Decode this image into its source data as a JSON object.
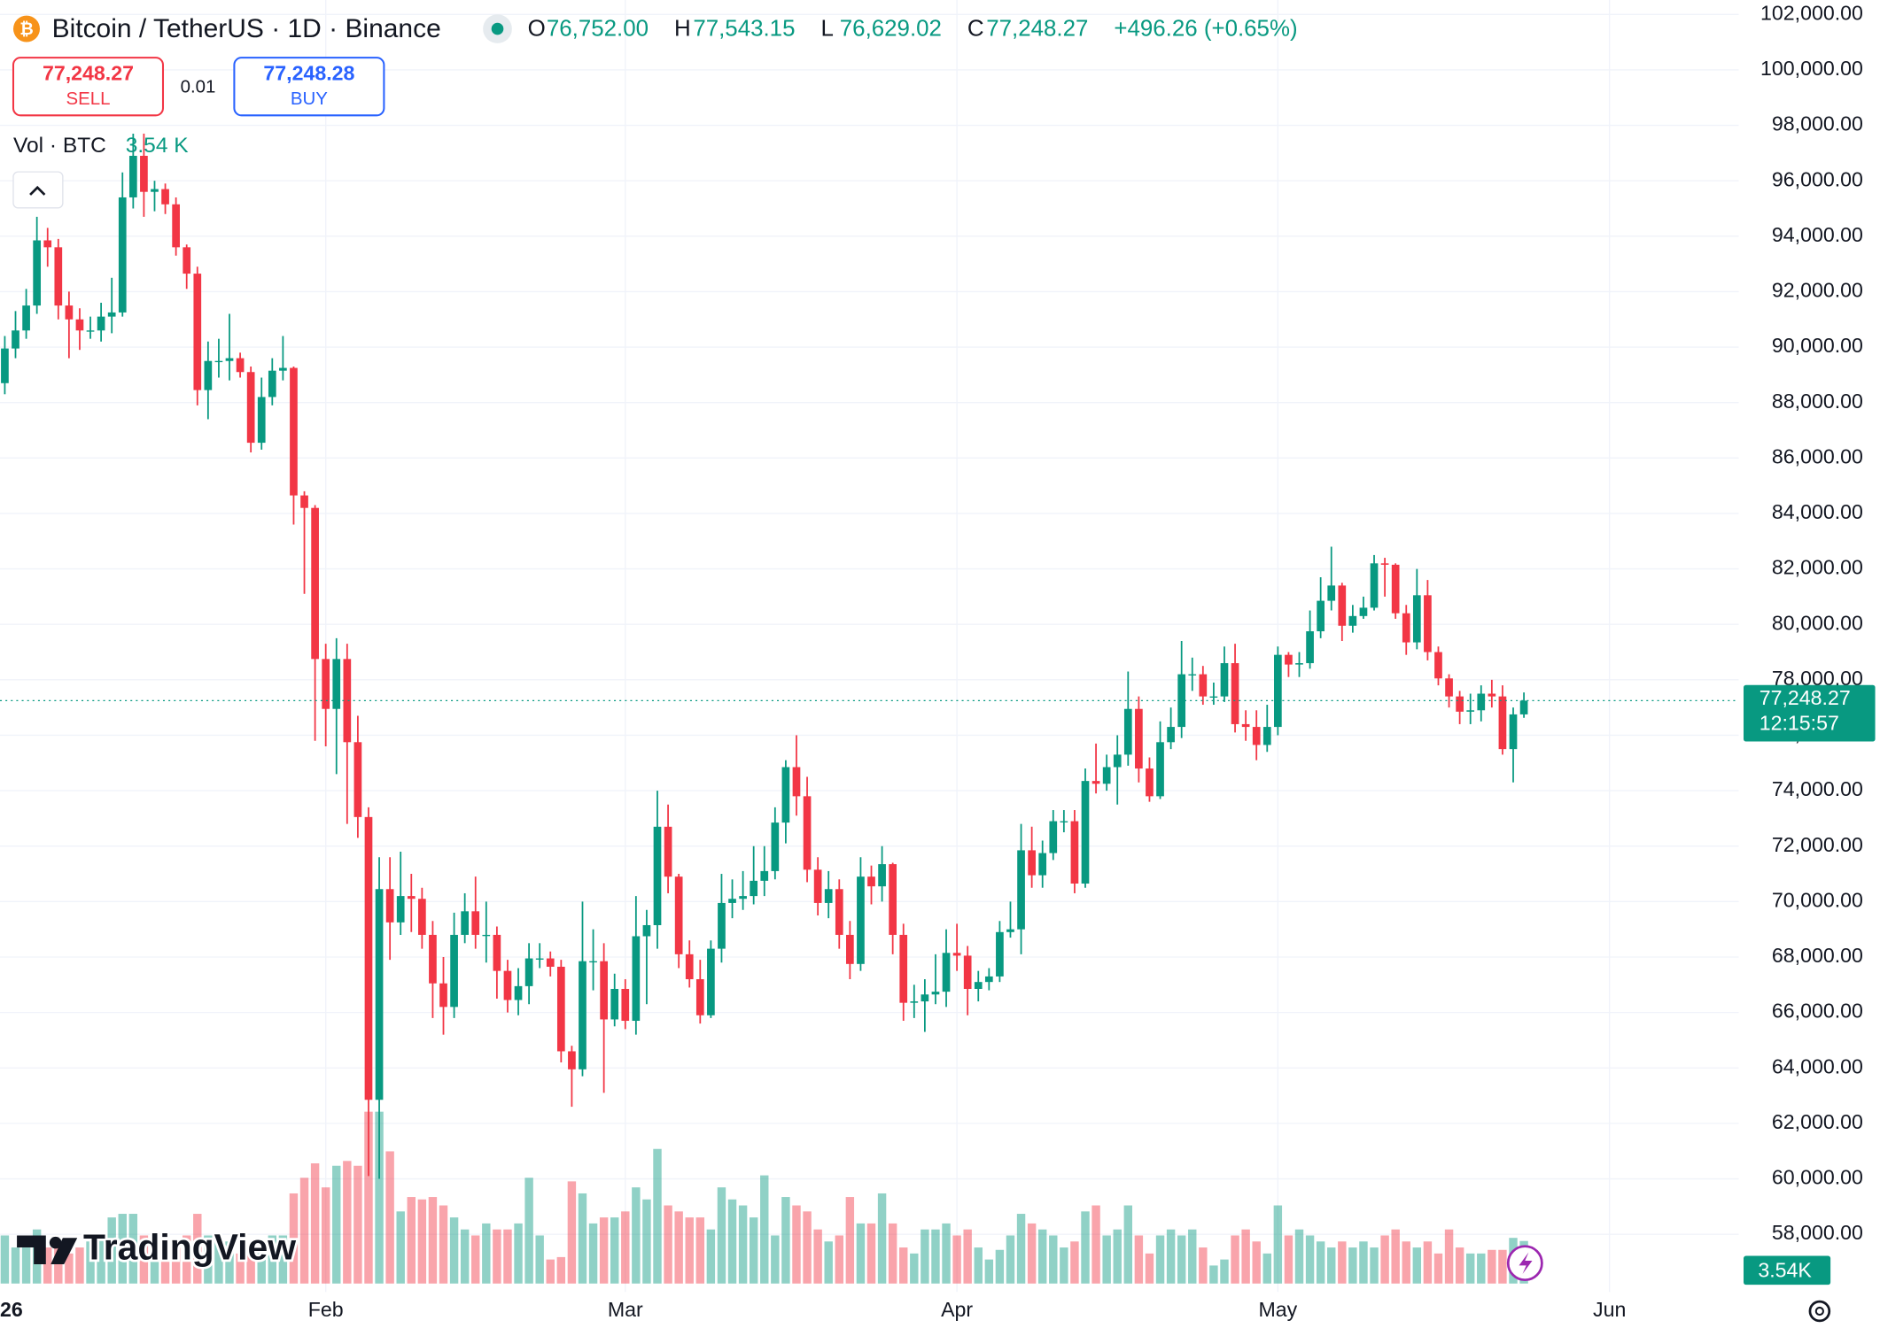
{
  "chart_data": {
    "type": "candlestick",
    "title": "Bitcoin / TetherUS · 1D · Binance",
    "ohlc_labels": [
      {
        "name": "O",
        "value": "76,752.00"
      },
      {
        "name": "H",
        "value": "77,543.15"
      },
      {
        "name": "L",
        "value": "76,629.02"
      },
      {
        "name": "C",
        "value": "77,248.27"
      }
    ],
    "change": "+496.26 (+0.65%)",
    "sell": {
      "price": "77,248.27",
      "label": "SELL"
    },
    "quantity": "0.01",
    "buy": {
      "price": "77,248.28",
      "label": "BUY"
    },
    "volume_title": "Vol · BTC",
    "volume_value": "3.54 K",
    "volume_axis_label": "3.54K",
    "last_price_label": "77,248.27",
    "countdown": "12:15:57",
    "logo": "TradingView",
    "up_color": "#089981",
    "down_color": "#f23645",
    "candles": [
      [
        88700,
        90400,
        88300,
        89950
      ],
      [
        89950,
        91300,
        89600,
        90600
      ],
      [
        90600,
        92100,
        90300,
        91500
      ],
      [
        91500,
        94700,
        91200,
        93850
      ],
      [
        93850,
        94300,
        92900,
        93600
      ],
      [
        93600,
        93900,
        91000,
        91500
      ],
      [
        91500,
        92000,
        89600,
        91000
      ],
      [
        91000,
        91400,
        89900,
        90600
      ],
      [
        90600,
        91100,
        90300,
        90600
      ],
      [
        90600,
        91600,
        90200,
        91100
      ],
      [
        91100,
        92500,
        90500,
        91250
      ],
      [
        91250,
        96300,
        91100,
        95400
      ],
      [
        95400,
        97700,
        95000,
        96900
      ],
      [
        96900,
        97700,
        94700,
        95600
      ],
      [
        95600,
        96000,
        94900,
        95700
      ],
      [
        95700,
        95900,
        94800,
        95150
      ],
      [
        95150,
        95400,
        93300,
        93600
      ],
      [
        93600,
        93700,
        92100,
        92650
      ],
      [
        92650,
        92900,
        87900,
        88450
      ],
      [
        88450,
        90200,
        87400,
        89500
      ],
      [
        89500,
        90300,
        88900,
        89500
      ],
      [
        89500,
        91200,
        88800,
        89600
      ],
      [
        89600,
        89800,
        88900,
        89100
      ],
      [
        89100,
        89300,
        86200,
        86550
      ],
      [
        86550,
        88900,
        86300,
        88200
      ],
      [
        88200,
        89600,
        87900,
        89150
      ],
      [
        89150,
        90400,
        88800,
        89250
      ],
      [
        89250,
        89300,
        83600,
        84650
      ],
      [
        84650,
        84800,
        81100,
        84200
      ],
      [
        84200,
        84300,
        75800,
        78750
      ],
      [
        78750,
        79300,
        75600,
        76950
      ],
      [
        76950,
        79500,
        74600,
        78750
      ],
      [
        78750,
        79300,
        72800,
        75750
      ],
      [
        75750,
        76700,
        72300,
        73050
      ],
      [
        73050,
        73400,
        60100,
        62850
      ],
      [
        62850,
        71600,
        60000,
        70450
      ],
      [
        70450,
        71600,
        67900,
        69250
      ],
      [
        69250,
        71800,
        68800,
        70200
      ],
      [
        70200,
        71000,
        68900,
        70100
      ],
      [
        70100,
        70500,
        68300,
        68800
      ],
      [
        68800,
        69300,
        65800,
        67050
      ],
      [
        67050,
        68000,
        65200,
        66200
      ],
      [
        66200,
        69600,
        65800,
        68800
      ],
      [
        68800,
        70300,
        68500,
        69650
      ],
      [
        69650,
        70900,
        68300,
        68800
      ],
      [
        68800,
        70000,
        67800,
        68800
      ],
      [
        68800,
        69100,
        66500,
        67500
      ],
      [
        67500,
        67900,
        66000,
        66450
      ],
      [
        66450,
        67600,
        65900,
        66950
      ],
      [
        66950,
        68500,
        66300,
        67950
      ],
      [
        67950,
        68500,
        67600,
        67950
      ],
      [
        67950,
        68200,
        67300,
        67650
      ],
      [
        67650,
        67900,
        64200,
        64600
      ],
      [
        64600,
        64800,
        62600,
        63950
      ],
      [
        63950,
        70000,
        63700,
        67850
      ],
      [
        67850,
        69000,
        66800,
        67850
      ],
      [
        67850,
        68500,
        63100,
        65750
      ],
      [
        65750,
        67400,
        65500,
        66850
      ],
      [
        66850,
        67200,
        65400,
        65700
      ],
      [
        65700,
        70200,
        65200,
        68750
      ],
      [
        68750,
        69700,
        66300,
        69150
      ],
      [
        69150,
        74000,
        68300,
        72700
      ],
      [
        72700,
        73500,
        70300,
        70900
      ],
      [
        70900,
        71000,
        67600,
        68100
      ],
      [
        68100,
        68600,
        66900,
        67200
      ],
      [
        67200,
        67900,
        65600,
        65900
      ],
      [
        65900,
        68600,
        65800,
        68300
      ],
      [
        68300,
        71000,
        67800,
        69950
      ],
      [
        69950,
        70800,
        69400,
        70100
      ],
      [
        70100,
        71100,
        69700,
        70200
      ],
      [
        70200,
        72000,
        69900,
        70750
      ],
      [
        70750,
        72000,
        70200,
        71100
      ],
      [
        71100,
        73400,
        70800,
        72850
      ],
      [
        72850,
        75100,
        72100,
        74850
      ],
      [
        74850,
        76000,
        73100,
        73800
      ],
      [
        73800,
        74500,
        70700,
        71150
      ],
      [
        71150,
        71600,
        69500,
        69950
      ],
      [
        69950,
        71100,
        69400,
        70450
      ],
      [
        70450,
        70800,
        68300,
        68800
      ],
      [
        68800,
        69300,
        67200,
        67750
      ],
      [
        67750,
        71600,
        67500,
        70900
      ],
      [
        70900,
        71300,
        69900,
        70550
      ],
      [
        70550,
        72000,
        70000,
        71350
      ],
      [
        71350,
        71400,
        68100,
        68800
      ],
      [
        68800,
        69200,
        65700,
        66350
      ],
      [
        66350,
        67000,
        65800,
        66400
      ],
      [
        66400,
        67200,
        65300,
        66650
      ],
      [
        66650,
        68100,
        66300,
        66750
      ],
      [
        66750,
        69000,
        66200,
        68150
      ],
      [
        68150,
        69200,
        67500,
        68050
      ],
      [
        68050,
        68400,
        65900,
        66850
      ],
      [
        66850,
        67500,
        66400,
        67100
      ],
      [
        67100,
        67600,
        66800,
        67300
      ],
      [
        67300,
        69300,
        67100,
        68900
      ],
      [
        68900,
        70000,
        68700,
        69000
      ],
      [
        69000,
        72800,
        68100,
        71850
      ],
      [
        71850,
        72700,
        70500,
        70950
      ],
      [
        70950,
        72200,
        70500,
        71750
      ],
      [
        71750,
        73300,
        71500,
        72900
      ],
      [
        72900,
        73300,
        72500,
        72900
      ],
      [
        72900,
        73300,
        70300,
        70650
      ],
      [
        70650,
        74800,
        70500,
        74350
      ],
      [
        74350,
        75700,
        73900,
        74250
      ],
      [
        74250,
        75300,
        74000,
        74850
      ],
      [
        74850,
        76000,
        73500,
        75300
      ],
      [
        75300,
        78300,
        74900,
        76950
      ],
      [
        76950,
        77400,
        74300,
        74800
      ],
      [
        74800,
        75200,
        73600,
        73800
      ],
      [
        73800,
        76500,
        73700,
        75750
      ],
      [
        75750,
        77000,
        75500,
        76300
      ],
      [
        76300,
        79400,
        75900,
        78200
      ],
      [
        78200,
        78800,
        77600,
        78200
      ],
      [
        78200,
        78500,
        77100,
        77400
      ],
      [
        77400,
        77900,
        77100,
        77400
      ],
      [
        77400,
        79200,
        77200,
        78600
      ],
      [
        78600,
        79300,
        76100,
        76400
      ],
      [
        76400,
        76900,
        75800,
        76300
      ],
      [
        76300,
        76900,
        75100,
        75650
      ],
      [
        75650,
        77100,
        75400,
        76300
      ],
      [
        76300,
        79200,
        76000,
        78900
      ],
      [
        78900,
        79000,
        78100,
        78550
      ],
      [
        78550,
        79000,
        78100,
        78600
      ],
      [
        78600,
        80500,
        78400,
        79750
      ],
      [
        79750,
        81700,
        79500,
        80850
      ],
      [
        80850,
        82800,
        80500,
        81400
      ],
      [
        81400,
        81500,
        79400,
        79950
      ],
      [
        79950,
        80700,
        79700,
        80300
      ],
      [
        80300,
        81000,
        80200,
        80600
      ],
      [
        80600,
        82500,
        80500,
        82200
      ],
      [
        82200,
        82400,
        81000,
        82150
      ],
      [
        82150,
        82200,
        80200,
        80400
      ],
      [
        80400,
        80700,
        78900,
        79350
      ],
      [
        79350,
        82000,
        79100,
        81050
      ],
      [
        81050,
        81600,
        78700,
        79000
      ],
      [
        79000,
        79200,
        77800,
        78050
      ],
      [
        78050,
        78200,
        77000,
        77400
      ],
      [
        77400,
        77600,
        76400,
        76850
      ],
      [
        76850,
        77500,
        76400,
        76900
      ],
      [
        76900,
        77800,
        76500,
        77500
      ],
      [
        77500,
        78000,
        77000,
        77400
      ],
      [
        77400,
        77800,
        75300,
        75500
      ],
      [
        75500,
        77000,
        74300,
        76752
      ],
      [
        76752,
        77543.15,
        76629.02,
        77248.27
      ]
    ],
    "volumes": [
      4000,
      3000,
      3000,
      4500,
      3000,
      3000,
      2500,
      3000,
      3500,
      4000,
      5500,
      5800,
      5800,
      4000,
      3500,
      2500,
      3000,
      4000,
      5800,
      4000,
      3500,
      3500,
      2500,
      3000,
      3500,
      4000,
      4000,
      7500,
      8800,
      10000,
      8000,
      9800,
      10200,
      9800,
      14300,
      14300,
      11000,
      6000,
      7200,
      7000,
      7200,
      6500,
      5500,
      4500,
      4000,
      5000,
      4500,
      4500,
      5000,
      8800,
      4000,
      2000,
      2200,
      8500,
      7500,
      5000,
      5500,
      5500,
      6000,
      8000,
      7000,
      11200,
      6500,
      6000,
      5500,
      5500,
      4500,
      8000,
      7000,
      6500,
      5500,
      9000,
      4000,
      7200,
      6500,
      6000,
      4500,
      3500,
      4000,
      7200,
      5000,
      5000,
      7500,
      5000,
      3000,
      2500,
      4500,
      4500,
      5000,
      4000,
      4500,
      3000,
      2000,
      2800,
      4000,
      5800,
      5000,
      4500,
      4000,
      3000,
      3500,
      6000,
      6500,
      4000,
      4500,
      6500,
      4000,
      2500,
      4000,
      4500,
      4000,
      4500,
      3000,
      1500,
      2000,
      4000,
      4500,
      3500,
      2500,
      6500,
      4000,
      4500,
      4000,
      3500,
      3000,
      3500,
      3000,
      3500,
      3000,
      4000,
      4500,
      3500,
      3000,
      3500,
      2500,
      4500,
      3000,
      2500,
      2500,
      2800,
      2800,
      3800,
      3540
    ],
    "xlim": [
      -0.45,
      162.08
    ],
    "xticks": [
      {
        "value": -1,
        "label": "26"
      },
      {
        "value": 30,
        "label": "Feb"
      },
      {
        "value": 58,
        "label": "Mar"
      },
      {
        "value": 89,
        "label": "Apr"
      },
      {
        "value": 119,
        "label": "May"
      },
      {
        "value": 150,
        "label": "Jun"
      }
    ],
    "ylim": [
      55920,
      102520
    ],
    "yticks": [
      {
        "value": 58000,
        "label": "58,000.00"
      },
      {
        "value": 60000,
        "label": "60,000.00"
      },
      {
        "value": 62000,
        "label": "62,000.00"
      },
      {
        "value": 64000,
        "label": "64,000.00"
      },
      {
        "value": 66000,
        "label": "66,000.00"
      },
      {
        "value": 68000,
        "label": "68,000.00"
      },
      {
        "value": 70000,
        "label": "70,000.00"
      },
      {
        "value": 72000,
        "label": "72,000.00"
      },
      {
        "value": 74000,
        "label": "74,000.00"
      },
      {
        "value": 76000,
        "label": "76,000.00"
      },
      {
        "value": 78000,
        "label": "78,000.00"
      },
      {
        "value": 80000,
        "label": "80,000.00"
      },
      {
        "value": 82000,
        "label": "82,000.00"
      },
      {
        "value": 84000,
        "label": "84,000.00"
      },
      {
        "value": 86000,
        "label": "86,000.00"
      },
      {
        "value": 88000,
        "label": "88,000.00"
      },
      {
        "value": 90000,
        "label": "90,000.00"
      },
      {
        "value": 92000,
        "label": "92,000.00"
      },
      {
        "value": 94000,
        "label": "94,000.00"
      },
      {
        "value": 96000,
        "label": "96,000.00"
      },
      {
        "value": 98000,
        "label": "98,000.00"
      },
      {
        "value": 100000,
        "label": "100,000.00"
      },
      {
        "value": 102000,
        "label": "102,000.00"
      }
    ],
    "grid": true
  }
}
